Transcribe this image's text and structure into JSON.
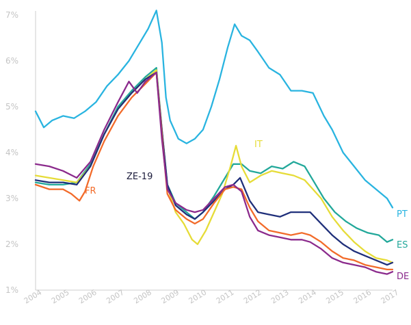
{
  "chart_data": {
    "type": "line",
    "ylim": [
      1,
      7
    ],
    "xlim": [
      2004,
      2017
    ],
    "y_ticks": [
      "1%",
      "2%",
      "3%",
      "4%",
      "5%",
      "6%",
      "7%"
    ],
    "x_ticks": [
      "2004",
      "2005",
      "2006",
      "2007",
      "2008",
      "2009",
      "2010",
      "2011",
      "2012",
      "2013",
      "2014",
      "2015",
      "2016",
      "2017"
    ],
    "grid": false,
    "legend": "inline labels at line ends",
    "series": [
      {
        "name": "PT",
        "color": "#29b4e0",
        "points": [
          [
            2004.0,
            4.9
          ],
          [
            2004.3,
            4.55
          ],
          [
            2004.6,
            4.7
          ],
          [
            2005.0,
            4.8
          ],
          [
            2005.4,
            4.75
          ],
          [
            2005.8,
            4.9
          ],
          [
            2006.2,
            5.1
          ],
          [
            2006.6,
            5.45
          ],
          [
            2007.0,
            5.7
          ],
          [
            2007.4,
            6.0
          ],
          [
            2007.8,
            6.4
          ],
          [
            2008.1,
            6.7
          ],
          [
            2008.4,
            7.1
          ],
          [
            2008.6,
            6.4
          ],
          [
            2008.75,
            5.2
          ],
          [
            2008.9,
            4.7
          ],
          [
            2009.2,
            4.3
          ],
          [
            2009.5,
            4.2
          ],
          [
            2009.8,
            4.3
          ],
          [
            2010.1,
            4.5
          ],
          [
            2010.4,
            5.0
          ],
          [
            2010.7,
            5.6
          ],
          [
            2011.0,
            6.3
          ],
          [
            2011.25,
            6.8
          ],
          [
            2011.5,
            6.55
          ],
          [
            2011.8,
            6.45
          ],
          [
            2012.1,
            6.2
          ],
          [
            2012.5,
            5.85
          ],
          [
            2012.9,
            5.7
          ],
          [
            2013.3,
            5.35
          ],
          [
            2013.7,
            5.35
          ],
          [
            2014.1,
            5.3
          ],
          [
            2014.5,
            4.8
          ],
          [
            2014.8,
            4.5
          ],
          [
            2015.2,
            4.0
          ],
          [
            2015.6,
            3.7
          ],
          [
            2016.0,
            3.4
          ],
          [
            2016.4,
            3.2
          ],
          [
            2016.8,
            3.0
          ],
          [
            2017.0,
            2.8
          ]
        ]
      },
      {
        "name": "ES",
        "color": "#22a89a",
        "points": [
          [
            2004.0,
            3.35
          ],
          [
            2004.5,
            3.3
          ],
          [
            2005.0,
            3.3
          ],
          [
            2005.5,
            3.35
          ],
          [
            2006.0,
            3.75
          ],
          [
            2006.5,
            4.4
          ],
          [
            2007.0,
            5.0
          ],
          [
            2007.5,
            5.35
          ],
          [
            2008.0,
            5.65
          ],
          [
            2008.4,
            5.85
          ],
          [
            2008.6,
            4.5
          ],
          [
            2008.8,
            3.3
          ],
          [
            2009.1,
            2.9
          ],
          [
            2009.5,
            2.7
          ],
          [
            2009.8,
            2.55
          ],
          [
            2010.1,
            2.7
          ],
          [
            2010.5,
            3.05
          ],
          [
            2010.9,
            3.45
          ],
          [
            2011.2,
            3.75
          ],
          [
            2011.5,
            3.75
          ],
          [
            2011.8,
            3.6
          ],
          [
            2012.2,
            3.55
          ],
          [
            2012.6,
            3.7
          ],
          [
            2013.0,
            3.65
          ],
          [
            2013.4,
            3.8
          ],
          [
            2013.8,
            3.7
          ],
          [
            2014.1,
            3.4
          ],
          [
            2014.5,
            3.0
          ],
          [
            2014.9,
            2.7
          ],
          [
            2015.3,
            2.5
          ],
          [
            2015.7,
            2.35
          ],
          [
            2016.1,
            2.25
          ],
          [
            2016.5,
            2.2
          ],
          [
            2016.8,
            2.05
          ],
          [
            2017.0,
            2.1
          ]
        ]
      },
      {
        "name": "IT",
        "color": "#e6dc38",
        "points": [
          [
            2004.0,
            3.5
          ],
          [
            2004.5,
            3.45
          ],
          [
            2005.0,
            3.4
          ],
          [
            2005.5,
            3.35
          ],
          [
            2006.0,
            3.7
          ],
          [
            2006.5,
            4.4
          ],
          [
            2007.0,
            4.95
          ],
          [
            2007.5,
            5.3
          ],
          [
            2008.0,
            5.6
          ],
          [
            2008.4,
            5.8
          ],
          [
            2008.6,
            4.5
          ],
          [
            2008.8,
            3.25
          ],
          [
            2009.1,
            2.7
          ],
          [
            2009.4,
            2.45
          ],
          [
            2009.7,
            2.1
          ],
          [
            2009.9,
            2.0
          ],
          [
            2010.2,
            2.3
          ],
          [
            2010.5,
            2.7
          ],
          [
            2010.8,
            3.1
          ],
          [
            2011.1,
            3.7
          ],
          [
            2011.3,
            4.15
          ],
          [
            2011.5,
            3.7
          ],
          [
            2011.8,
            3.35
          ],
          [
            2012.2,
            3.5
          ],
          [
            2012.6,
            3.6
          ],
          [
            2013.0,
            3.55
          ],
          [
            2013.4,
            3.5
          ],
          [
            2013.8,
            3.4
          ],
          [
            2014.1,
            3.2
          ],
          [
            2014.4,
            3.0
          ],
          [
            2014.8,
            2.6
          ],
          [
            2015.2,
            2.3
          ],
          [
            2015.6,
            2.05
          ],
          [
            2016.0,
            1.85
          ],
          [
            2016.4,
            1.7
          ],
          [
            2016.8,
            1.65
          ],
          [
            2017.0,
            1.6
          ]
        ]
      },
      {
        "name": "ZE-19",
        "color": "#1f2f7a",
        "points": [
          [
            2004.0,
            3.4
          ],
          [
            2004.5,
            3.35
          ],
          [
            2005.0,
            3.35
          ],
          [
            2005.5,
            3.3
          ],
          [
            2006.0,
            3.7
          ],
          [
            2006.5,
            4.4
          ],
          [
            2007.0,
            4.95
          ],
          [
            2007.5,
            5.3
          ],
          [
            2008.0,
            5.6
          ],
          [
            2008.4,
            5.75
          ],
          [
            2008.6,
            4.5
          ],
          [
            2008.8,
            3.3
          ],
          [
            2009.1,
            2.85
          ],
          [
            2009.5,
            2.65
          ],
          [
            2009.8,
            2.55
          ],
          [
            2010.1,
            2.7
          ],
          [
            2010.5,
            2.95
          ],
          [
            2010.9,
            3.2
          ],
          [
            2011.2,
            3.3
          ],
          [
            2011.45,
            3.45
          ],
          [
            2011.8,
            2.95
          ],
          [
            2012.1,
            2.7
          ],
          [
            2012.5,
            2.65
          ],
          [
            2012.9,
            2.6
          ],
          [
            2013.3,
            2.7
          ],
          [
            2013.7,
            2.7
          ],
          [
            2014.0,
            2.7
          ],
          [
            2014.4,
            2.45
          ],
          [
            2014.8,
            2.2
          ],
          [
            2015.2,
            2.0
          ],
          [
            2015.6,
            1.85
          ],
          [
            2016.0,
            1.75
          ],
          [
            2016.4,
            1.65
          ],
          [
            2016.8,
            1.55
          ],
          [
            2017.0,
            1.6
          ]
        ]
      },
      {
        "name": "FR",
        "color": "#f26b2a",
        "points": [
          [
            2004.0,
            3.3
          ],
          [
            2004.5,
            3.2
          ],
          [
            2005.0,
            3.2
          ],
          [
            2005.3,
            3.1
          ],
          [
            2005.6,
            2.95
          ],
          [
            2005.8,
            3.15
          ],
          [
            2006.1,
            3.7
          ],
          [
            2006.5,
            4.25
          ],
          [
            2007.0,
            4.8
          ],
          [
            2007.5,
            5.2
          ],
          [
            2008.0,
            5.5
          ],
          [
            2008.4,
            5.75
          ],
          [
            2008.6,
            4.4
          ],
          [
            2008.8,
            3.1
          ],
          [
            2009.1,
            2.75
          ],
          [
            2009.5,
            2.55
          ],
          [
            2009.8,
            2.45
          ],
          [
            2010.1,
            2.55
          ],
          [
            2010.5,
            2.9
          ],
          [
            2010.9,
            3.2
          ],
          [
            2011.2,
            3.25
          ],
          [
            2011.5,
            3.2
          ],
          [
            2011.8,
            2.8
          ],
          [
            2012.1,
            2.5
          ],
          [
            2012.5,
            2.3
          ],
          [
            2012.9,
            2.25
          ],
          [
            2013.3,
            2.2
          ],
          [
            2013.7,
            2.25
          ],
          [
            2014.0,
            2.2
          ],
          [
            2014.4,
            2.05
          ],
          [
            2014.8,
            1.85
          ],
          [
            2015.2,
            1.7
          ],
          [
            2015.6,
            1.65
          ],
          [
            2016.0,
            1.55
          ],
          [
            2016.4,
            1.5
          ],
          [
            2016.8,
            1.45
          ],
          [
            2017.0,
            1.45
          ]
        ]
      },
      {
        "name": "DE",
        "color": "#8b2a8c",
        "points": [
          [
            2004.0,
            3.75
          ],
          [
            2004.5,
            3.7
          ],
          [
            2005.0,
            3.6
          ],
          [
            2005.5,
            3.45
          ],
          [
            2006.0,
            3.8
          ],
          [
            2006.5,
            4.5
          ],
          [
            2007.0,
            5.1
          ],
          [
            2007.4,
            5.55
          ],
          [
            2007.7,
            5.3
          ],
          [
            2008.0,
            5.55
          ],
          [
            2008.4,
            5.75
          ],
          [
            2008.6,
            4.3
          ],
          [
            2008.8,
            3.2
          ],
          [
            2009.1,
            2.9
          ],
          [
            2009.5,
            2.75
          ],
          [
            2009.8,
            2.7
          ],
          [
            2010.1,
            2.75
          ],
          [
            2010.5,
            3.0
          ],
          [
            2010.9,
            3.25
          ],
          [
            2011.2,
            3.3
          ],
          [
            2011.5,
            3.15
          ],
          [
            2011.8,
            2.6
          ],
          [
            2012.1,
            2.3
          ],
          [
            2012.5,
            2.2
          ],
          [
            2012.9,
            2.15
          ],
          [
            2013.3,
            2.1
          ],
          [
            2013.7,
            2.1
          ],
          [
            2014.0,
            2.05
          ],
          [
            2014.4,
            1.9
          ],
          [
            2014.8,
            1.7
          ],
          [
            2015.2,
            1.6
          ],
          [
            2015.6,
            1.55
          ],
          [
            2016.0,
            1.5
          ],
          [
            2016.4,
            1.4
          ],
          [
            2016.8,
            1.35
          ],
          [
            2017.0,
            1.4
          ]
        ]
      }
    ]
  }
}
